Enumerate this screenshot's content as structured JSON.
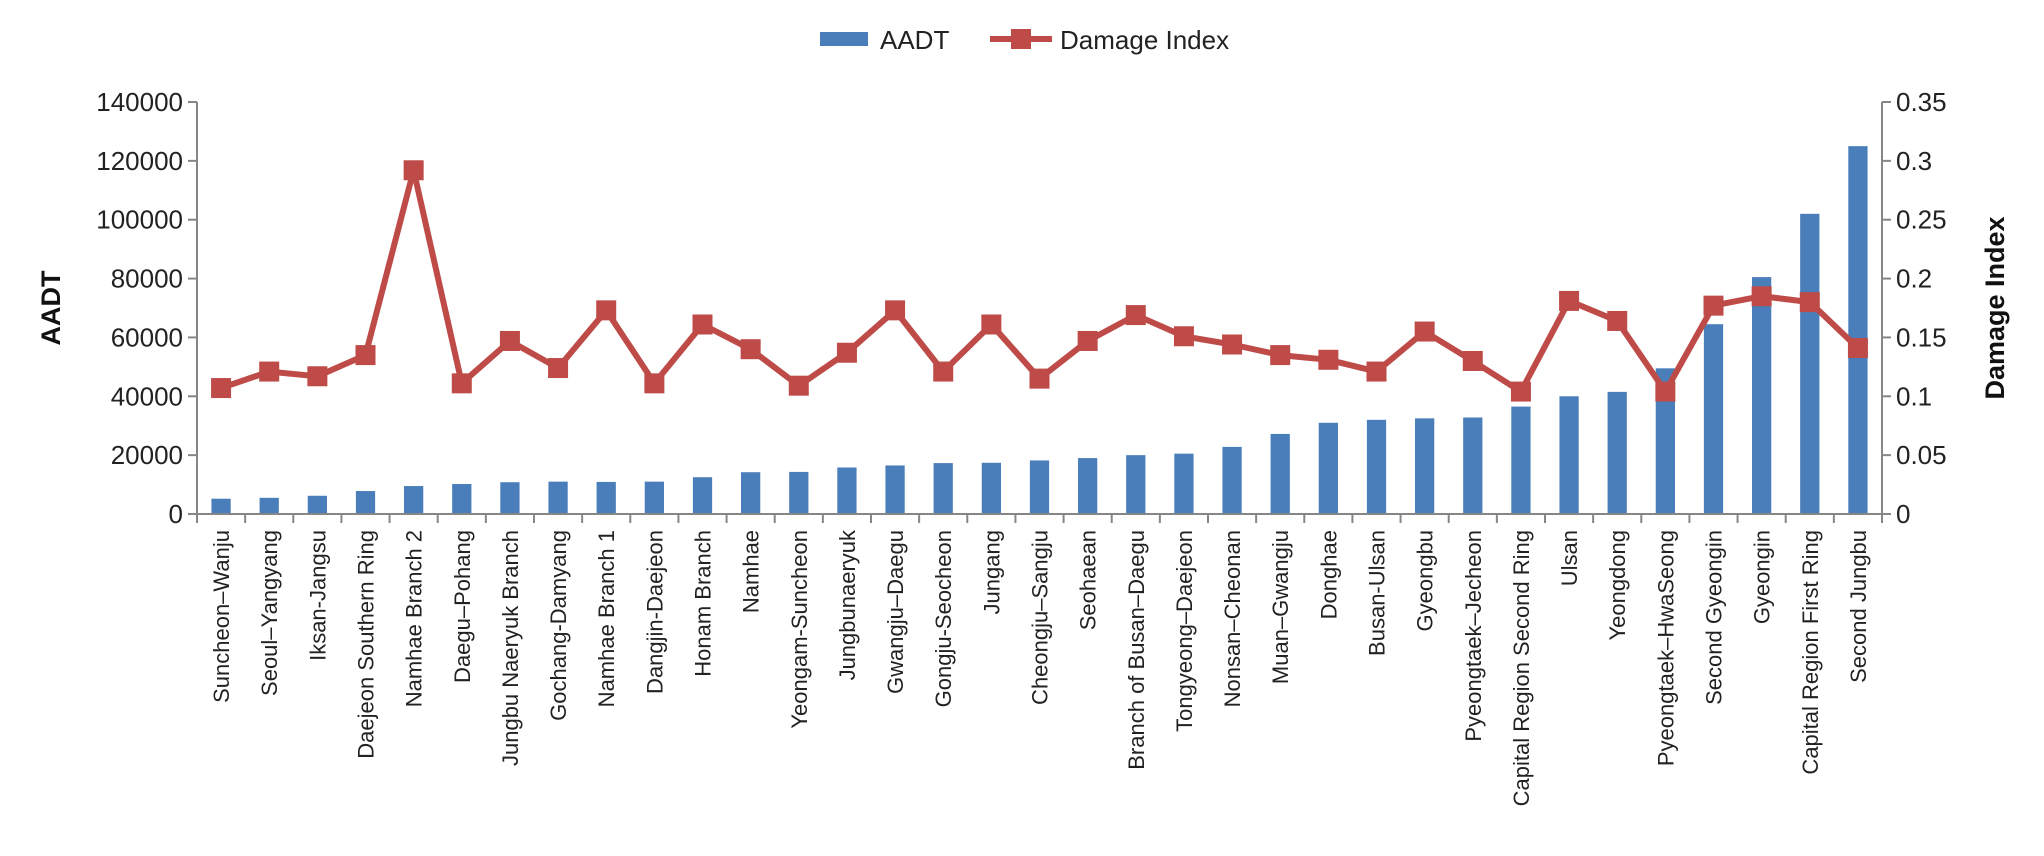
{
  "chart_data": {
    "type": "bar+line",
    "categories": [
      "Suncheon–Wanju",
      "Seoul–Yangyang",
      "Iksan-Jangsu",
      "Daejeon Southern Ring",
      "Namhae Branch 2",
      "Daegu–Pohang",
      "Jungbu Naeryuk Branch",
      "Gochang-Damyang",
      "Namhae Branch 1",
      "Dangjin-Daejeon",
      "Honam Branch",
      "Namhae",
      "Yeongam-Suncheon",
      "Jungbunaeryuk",
      "Gwangju–Daegu",
      "Gongju-Seocheon",
      "Jungang",
      "Cheongju–Sangju",
      "Seohaean",
      "Branch of Busan–Daegu",
      "Tongyeong–Daejeon",
      "Nonsan–Cheonan",
      "Muan–Gwangju",
      "Donghae",
      "Busan-Ulsan",
      "Gyeongbu",
      "Pyeongtaek–Jecheon",
      "Capital Region Second Ring",
      "Ulsan",
      "Yeongdong",
      "Pyeongtaek–HwaSeong",
      "Second Gyeongin",
      "Gyeongin",
      "Capital Region First Ring",
      "Second Jungbu"
    ],
    "series": [
      {
        "name": "AADT",
        "type": "bar",
        "axis": "left",
        "color": "#4a7ebb",
        "values": [
          5200,
          5500,
          6200,
          7800,
          9500,
          10200,
          10800,
          11000,
          10900,
          11000,
          12500,
          14200,
          14300,
          15800,
          16500,
          17300,
          17400,
          18200,
          19000,
          20000,
          20500,
          22800,
          27200,
          31000,
          32000,
          32500,
          32800,
          36500,
          40000,
          41500,
          49500,
          64500,
          80500,
          102000,
          125000
        ]
      },
      {
        "name": "Damage Index",
        "type": "line",
        "axis": "right",
        "color": "#be4b48",
        "values": [
          0.107,
          0.121,
          0.117,
          0.135,
          0.292,
          0.111,
          0.147,
          0.124,
          0.173,
          0.111,
          0.161,
          0.14,
          0.109,
          0.137,
          0.173,
          0.121,
          0.161,
          0.115,
          0.147,
          0.169,
          0.151,
          0.144,
          0.135,
          0.131,
          0.121,
          0.155,
          0.13,
          0.104,
          0.181,
          0.164,
          0.104,
          0.177,
          0.185,
          0.18,
          0.141
        ]
      }
    ],
    "ylabel": "AADT",
    "ylim": [
      0,
      140000
    ],
    "yticks": [
      "0",
      "20000",
      "40000",
      "60000",
      "80000",
      "100000",
      "120000",
      "140000"
    ],
    "y2label": "Damage Index",
    "y2lim": [
      0,
      0.35
    ],
    "y2ticks": [
      "0",
      "0.05",
      "0.1",
      "0.15",
      "0.2",
      "0.25",
      "0.3",
      "0.35"
    ],
    "legend": [
      "AADT",
      "Damage Index"
    ],
    "legend_position": "top-center",
    "grid": false
  }
}
